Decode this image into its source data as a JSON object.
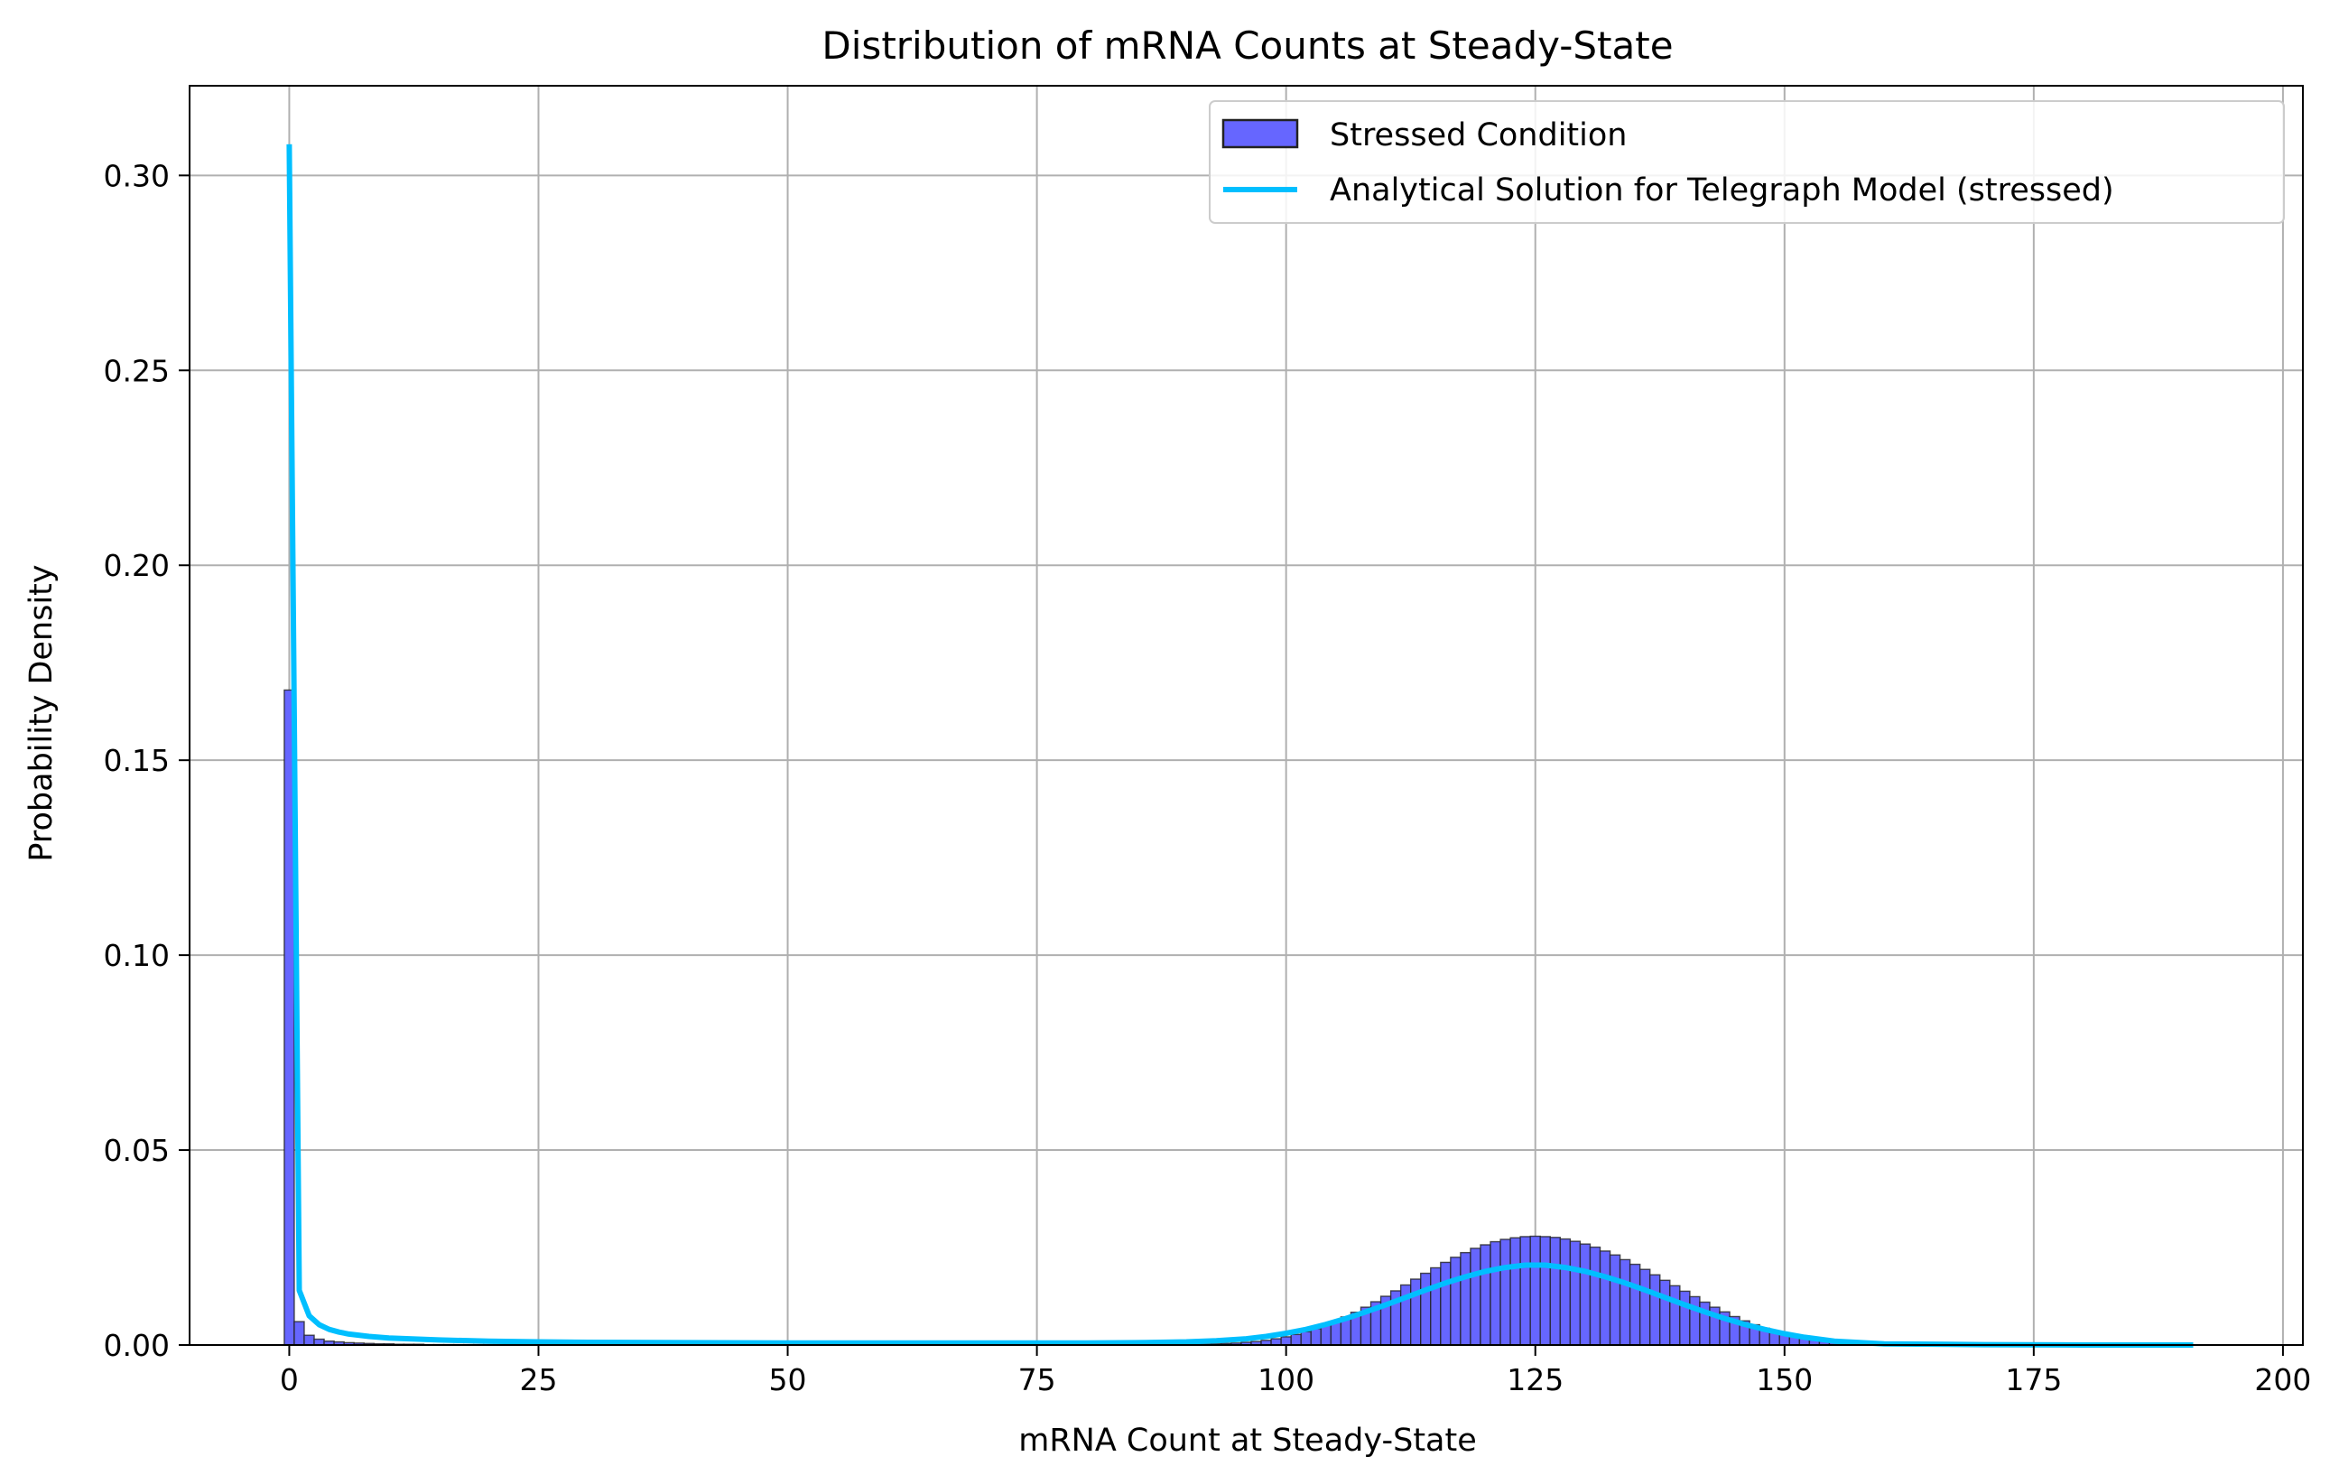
{
  "chart_data": {
    "type": "bar",
    "title": "Distribution of mRNA Counts at Steady-State",
    "xlabel": "mRNA Count at Steady-State",
    "ylabel": "Probability Density",
    "xlim": [
      -10,
      202
    ],
    "ylim": [
      0,
      0.323
    ],
    "xticks": [
      0,
      25,
      50,
      75,
      100,
      125,
      150,
      175,
      200
    ],
    "yticks": [
      0.0,
      0.05,
      0.1,
      0.15,
      0.2,
      0.25,
      0.3
    ],
    "xtick_labels": [
      "0",
      "25",
      "50",
      "75",
      "100",
      "125",
      "150",
      "175",
      "200"
    ],
    "ytick_labels": [
      "0.00",
      "0.05",
      "0.10",
      "0.15",
      "0.20",
      "0.25",
      "0.30"
    ],
    "grid": true,
    "legend_position": "top-right",
    "legend": [
      "Stressed Condition",
      "Analytical Solution for Telegraph Model (stressed)"
    ],
    "colors": {
      "histogram_fill": "#6666ff",
      "histogram_edge": "#222222",
      "curve": "#00bfff",
      "grid": "#b0b0b0"
    },
    "histogram": {
      "name": "Stressed Condition",
      "bin_width": 1,
      "bin_start": -0.5,
      "values": [
        0.168,
        0.006,
        0.0025,
        0.0015,
        0.001,
        0.0008,
        0.0006,
        0.0005,
        0.0004,
        0.0003,
        0.0003,
        0.0002,
        0.0002,
        0.0002,
        0.0001,
        0.0001,
        0.0001,
        0.0001,
        0.0001,
        0.0001,
        0.0001,
        0.0001,
        0.0001,
        0.0001,
        0.0001,
        0.0001,
        0.0001,
        0.0001,
        0.0001,
        0.0001,
        0.0001,
        0.0001,
        0.0001,
        0.0001,
        0.0001,
        0.0001,
        0.0001,
        0.0001,
        0.0001,
        0.0001,
        0.0001,
        0.0001,
        0.0001,
        0.0001,
        0.0001,
        0.0001,
        0.0001,
        0.0001,
        0.0001,
        0.0001,
        0.0001,
        0.0001,
        0.0001,
        0.0001,
        0.0001,
        0.0001,
        0.0001,
        0.0001,
        0.0001,
        0.0001,
        0.0001,
        0.0001,
        0.0001,
        0.0001,
        0.0001,
        0.0001,
        0.0001,
        0.0001,
        0.0001,
        0.0001,
        0.0001,
        0.0001,
        0.0001,
        0.0001,
        0.0001,
        0.0001,
        0.0001,
        0.0001,
        0.0001,
        0.0001,
        0.0001,
        0.0001,
        0.0001,
        0.0001,
        0.0001,
        0.0001,
        0.0001,
        0.0001,
        0.0001,
        0.0001,
        0.0001,
        0.0002,
        0.0002,
        0.0003,
        0.0004,
        0.0005,
        0.0007,
        0.0009,
        0.0012,
        0.0016,
        0.0021,
        0.0027,
        0.0034,
        0.0042,
        0.0051,
        0.0061,
        0.0072,
        0.0084,
        0.0097,
        0.0111,
        0.0125,
        0.0139,
        0.0154,
        0.0169,
        0.0184,
        0.0198,
        0.0212,
        0.0225,
        0.0237,
        0.0248,
        0.0257,
        0.0265,
        0.0271,
        0.0275,
        0.0278,
        0.0279,
        0.0278,
        0.0276,
        0.0272,
        0.0266,
        0.0259,
        0.0251,
        0.0241,
        0.0231,
        0.0219,
        0.0207,
        0.0194,
        0.018,
        0.0166,
        0.0152,
        0.0138,
        0.0124,
        0.011,
        0.0097,
        0.0085,
        0.0073,
        0.0062,
        0.0052,
        0.0043,
        0.0035,
        0.0028,
        0.0022,
        0.0017,
        0.0013,
        0.001,
        0.0007,
        0.0005,
        0.0003,
        0.0002,
        0.0001,
        0.0001
      ]
    },
    "curve": {
      "name": "Analytical Solution for Telegraph Model (stressed)",
      "x": [
        0,
        1,
        2,
        3,
        4,
        5,
        6,
        8,
        10,
        15,
        20,
        25,
        30,
        40,
        50,
        60,
        70,
        80,
        85,
        90,
        93,
        96,
        98,
        100,
        102,
        104,
        106,
        108,
        110,
        112,
        114,
        116,
        118,
        120,
        122,
        124,
        126,
        128,
        130,
        132,
        134,
        136,
        138,
        140,
        142,
        144,
        146,
        148,
        150,
        152,
        155,
        160,
        170,
        180,
        191
      ],
      "y": [
        0.308,
        0.014,
        0.0075,
        0.0052,
        0.004,
        0.0033,
        0.0028,
        0.0022,
        0.0018,
        0.0013,
        0.001,
        0.0008,
        0.0007,
        0.0006,
        0.0005,
        0.0005,
        0.0005,
        0.0005,
        0.0006,
        0.0008,
        0.0011,
        0.0016,
        0.0022,
        0.003,
        0.004,
        0.0053,
        0.0068,
        0.0085,
        0.0103,
        0.0122,
        0.0141,
        0.0159,
        0.0175,
        0.0189,
        0.0199,
        0.0205,
        0.0205,
        0.0199,
        0.0189,
        0.0175,
        0.0159,
        0.0141,
        0.0122,
        0.0103,
        0.0085,
        0.0068,
        0.0053,
        0.004,
        0.0029,
        0.002,
        0.001,
        0.0003,
        0.0001,
        0.0,
        0.0
      ]
    }
  }
}
